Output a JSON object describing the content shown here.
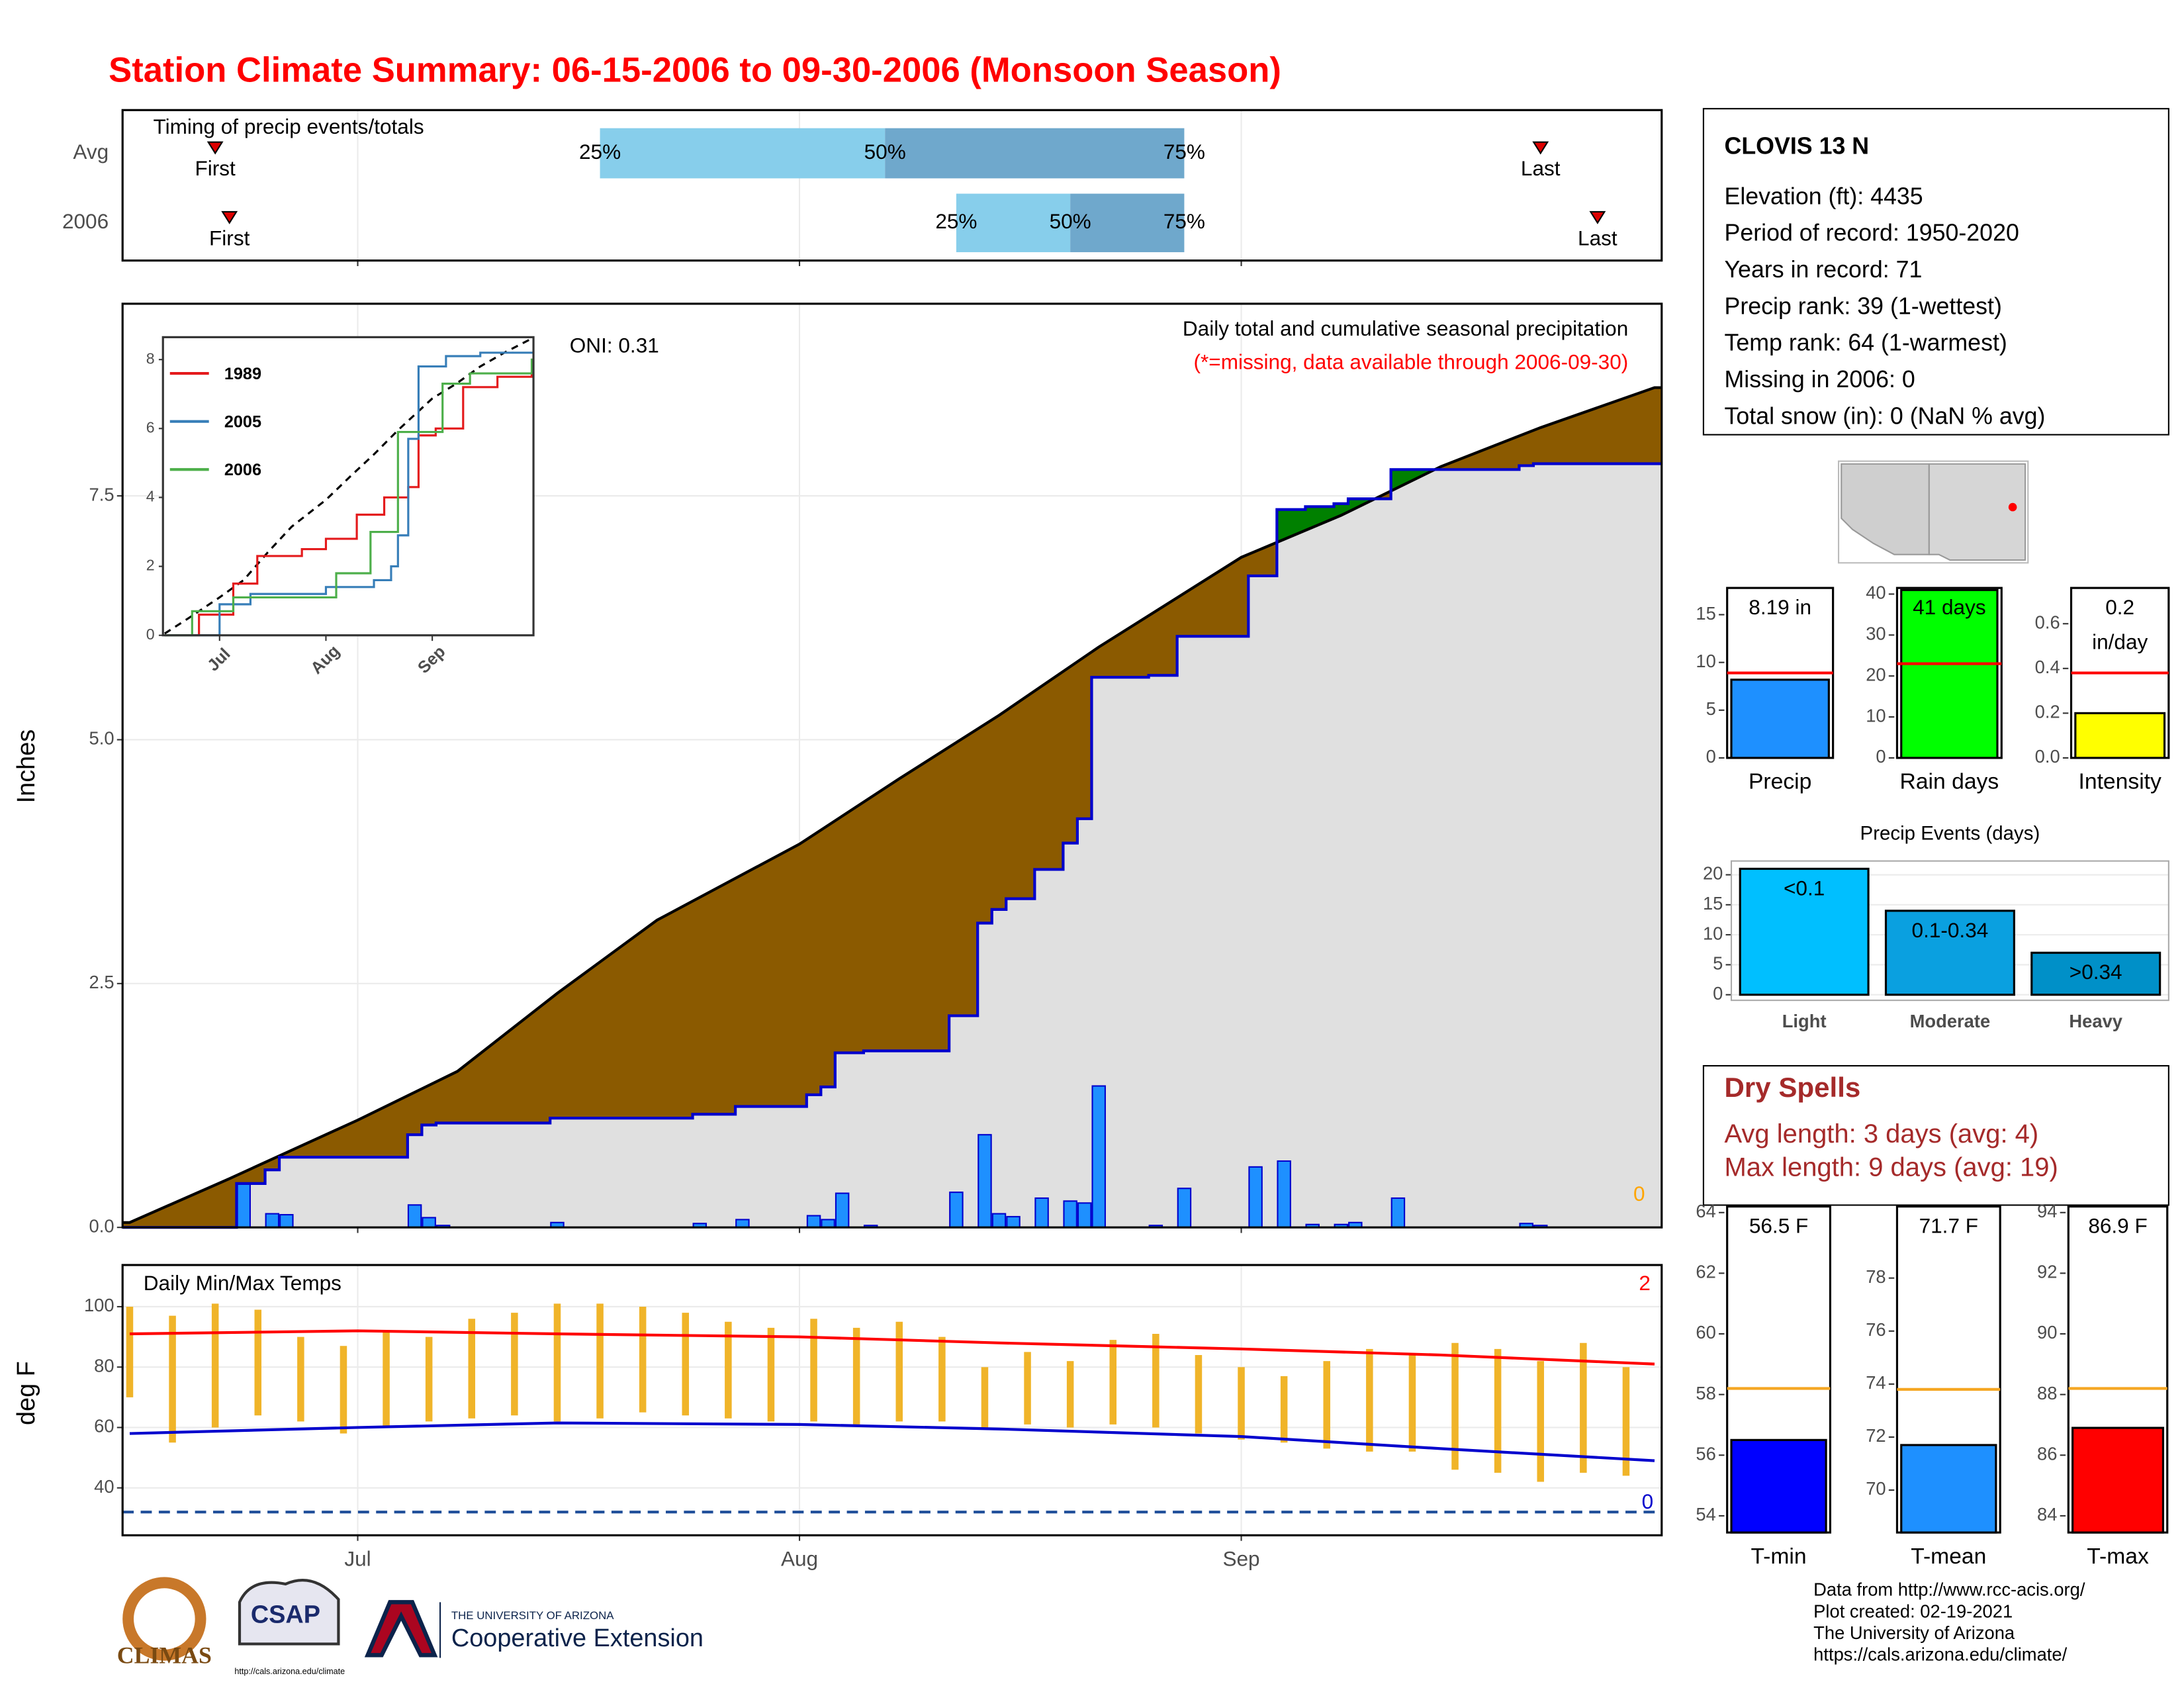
{
  "title": "Station Climate Summary: 06-15-2006 to 09-30-2006 (Monsoon Season)",
  "station": {
    "name": "CLOVIS 13 N",
    "lines": [
      "Elevation (ft): 4435",
      "Period of record: 1950-2020",
      "Years in record: 71",
      "Precip rank: 39 (1-wettest)",
      "Temp rank: 64 (1-warmest)",
      "Missing in 2006: 0",
      "Total snow (in): 0 (NaN % avg)"
    ]
  },
  "dry_spells": {
    "title": "Dry Spells",
    "lines": [
      "Avg length: 3 days (avg: 4)",
      "Max length: 9 days (avg: 19)"
    ]
  },
  "credits": [
    "Data from http://www.rcc-acis.org/",
    "Plot created: 02-19-2021",
    "The University of Arizona",
    "https://cals.arizona.edu/climate/"
  ],
  "logos": {
    "climas": "CLIMAS",
    "csap": "CSAP",
    "csap_url": "http://cals.arizona.edu/climate",
    "university": "THE UNIVERSITY OF ARIZONA",
    "extension": "Cooperative Extension"
  },
  "chart_data": [
    {
      "type": "timeline",
      "title": "Timing of precip events/totals",
      "xlim": [
        "2006-06-15",
        "2006-09-30"
      ],
      "xticks": [
        {
          "value": "2006-07-01",
          "label": "Jul"
        },
        {
          "value": "2006-08-01",
          "label": "Aug"
        },
        {
          "value": "2006-09-01",
          "label": "Sep"
        }
      ],
      "quartile_labels": [
        "25%",
        "50%",
        "75%"
      ],
      "first_label": "First",
      "last_label": "Last",
      "colors": [
        "#87ceeb",
        "#6fa8cc"
      ],
      "marker_color": "#dd0000",
      "rows": [
        {
          "label": "Avg",
          "first": "2006-06-21",
          "last": "2006-09-22",
          "quartiles": [
            "2006-07-18",
            "2006-08-07",
            "2006-08-28"
          ]
        },
        {
          "label": "2006",
          "first": "2006-06-22",
          "last": "2006-09-26",
          "quartiles": [
            "2006-08-12",
            "2006-08-20",
            "2006-08-28"
          ]
        }
      ]
    },
    {
      "type": "cumulative",
      "title": "Daily total and cumulative seasonal precipitation",
      "subtitle": "(*=missing, data available through 2006-09-30)",
      "annotation": "ONI: 0.31",
      "missing_count": 0,
      "ylabel": "Inches",
      "grid": true,
      "xlim": [
        "2006-06-15",
        "2006-09-30"
      ],
      "xticks": [
        {
          "value": "2006-07-01",
          "label": "Jul"
        },
        {
          "value": "2006-08-01",
          "label": "Aug"
        },
        {
          "value": "2006-09-01",
          "label": "Sep"
        }
      ],
      "ylim": [
        0,
        9.47
      ],
      "yticks": [
        {
          "value": 0,
          "label": "0.0"
        },
        2.5,
        {
          "value": 5,
          "label": "5.0"
        },
        7.5
      ],
      "colors": {
        "below": "#8b5a00",
        "above": "#008000",
        "base": "#e0e0e0",
        "observed": "#0000cd",
        "average": "#000000",
        "missing": "#ffa500"
      },
      "daily": {
        "color": "#1e90ff",
        "x": [
          "2006-06-23",
          "2006-06-25",
          "2006-06-26",
          "2006-07-05",
          "2006-07-06",
          "2006-07-07",
          "2006-07-15",
          "2006-07-25",
          "2006-07-28",
          "2006-08-02",
          "2006-08-03",
          "2006-08-04",
          "2006-08-06",
          "2006-08-12",
          "2006-08-14",
          "2006-08-15",
          "2006-08-16",
          "2006-08-18",
          "2006-08-20",
          "2006-08-21",
          "2006-08-22",
          "2006-08-26",
          "2006-08-28",
          "2006-09-02",
          "2006-09-04",
          "2006-09-06",
          "2006-09-08",
          "2006-09-09",
          "2006-09-12",
          "2006-09-21",
          "2006-09-22"
        ],
        "values": [
          0.45,
          0.14,
          0.13,
          0.23,
          0.1,
          0.02,
          0.05,
          0.04,
          0.08,
          0.12,
          0.08,
          0.35,
          0.02,
          0.36,
          0.95,
          0.14,
          0.11,
          0.3,
          0.27,
          0.25,
          1.45,
          0.02,
          0.4,
          0.62,
          0.68,
          0.03,
          0.03,
          0.05,
          0.3,
          0.04,
          0.02
        ]
      },
      "average": {
        "x": [
          "2006-06-15",
          "2006-06-22",
          "2006-07-01",
          "2006-07-08",
          "2006-07-15",
          "2006-07-22",
          "2006-08-01",
          "2006-08-08",
          "2006-08-15",
          "2006-08-22",
          "2006-09-01",
          "2006-09-08",
          "2006-09-15",
          "2006-09-22",
          "2006-09-30"
        ],
        "values": [
          0.05,
          0.5,
          1.1,
          1.6,
          2.4,
          3.15,
          3.93,
          4.6,
          5.25,
          5.95,
          6.87,
          7.3,
          7.8,
          8.2,
          8.61
        ]
      }
    },
    {
      "type": "line",
      "xlim": [
        "2006-06-15",
        "2006-09-30"
      ],
      "ylim": [
        0,
        8.65
      ],
      "yticks": [
        0,
        2,
        4,
        6,
        8
      ],
      "xticks": [
        {
          "value": "2006-07-01",
          "label": "Jul"
        },
        {
          "value": "2006-08-01",
          "label": "Aug"
        },
        {
          "value": "2006-09-01",
          "label": "Sep"
        }
      ],
      "series": [
        {
          "name": "1989",
          "color": "#e41a1c",
          "x": [
            "2006-06-15",
            "2006-06-25",
            "2006-07-05",
            "2006-07-12",
            "2006-07-25",
            "2006-08-01",
            "2006-08-10",
            "2006-08-18",
            "2006-08-25",
            "2006-08-28",
            "2006-09-02",
            "2006-09-10",
            "2006-09-20",
            "2006-09-30"
          ],
          "values": [
            0,
            0.6,
            1.5,
            2.3,
            2.5,
            2.8,
            3.5,
            4.0,
            4.3,
            5.8,
            6.0,
            7.2,
            7.5,
            7.6
          ]
        },
        {
          "name": "2005",
          "color": "#377eb8",
          "x": [
            "2006-06-15",
            "2006-07-01",
            "2006-07-10",
            "2006-08-01",
            "2006-08-15",
            "2006-08-20",
            "2006-08-22",
            "2006-08-25",
            "2006-08-28",
            "2006-09-05",
            "2006-09-15",
            "2006-09-30"
          ],
          "values": [
            0,
            0.9,
            1.2,
            1.4,
            1.6,
            2.0,
            2.9,
            5.7,
            7.8,
            8.1,
            8.2,
            8.2
          ]
        },
        {
          "name": "2006",
          "color": "#4daf4a",
          "x": [
            "2006-06-15",
            "2006-06-23",
            "2006-07-05",
            "2006-08-04",
            "2006-08-14",
            "2006-08-22",
            "2006-09-04",
            "2006-09-12",
            "2006-09-30"
          ],
          "values": [
            0,
            0.7,
            1.1,
            1.8,
            3.0,
            5.9,
            7.3,
            7.6,
            8.0
          ]
        }
      ]
    },
    {
      "type": "range",
      "title": "Daily Min/Max Temps",
      "ylabel": "deg F",
      "color": "#f0b429",
      "grid": true,
      "xlim": [
        "2006-06-15",
        "2006-09-30"
      ],
      "xticks": [
        {
          "value": "2006-07-01",
          "label": "Jul"
        },
        {
          "value": "2006-08-01",
          "label": "Aug"
        },
        {
          "value": "2006-09-01",
          "label": "Sep"
        }
      ],
      "ylim": [
        24.3,
        113.8
      ],
      "yticks": [
        40,
        60,
        80,
        100
      ],
      "freeze": 32,
      "freeze_color": "#1f4e9a",
      "record_high_count": 2,
      "record_low_count": 0,
      "x": [
        "2006-06-15",
        "2006-06-18",
        "2006-06-21",
        "2006-06-24",
        "2006-06-27",
        "2006-06-30",
        "2006-07-03",
        "2006-07-06",
        "2006-07-09",
        "2006-07-12",
        "2006-07-15",
        "2006-07-18",
        "2006-07-21",
        "2006-07-24",
        "2006-07-27",
        "2006-07-30",
        "2006-08-02",
        "2006-08-05",
        "2006-08-08",
        "2006-08-11",
        "2006-08-14",
        "2006-08-17",
        "2006-08-20",
        "2006-08-23",
        "2006-08-26",
        "2006-08-29",
        "2006-09-01",
        "2006-09-04",
        "2006-09-07",
        "2006-09-10",
        "2006-09-13",
        "2006-09-16",
        "2006-09-19",
        "2006-09-22",
        "2006-09-25",
        "2006-09-28"
      ],
      "max": [
        100,
        97,
        101,
        99,
        90,
        87,
        92,
        90,
        96,
        98,
        101,
        101,
        100,
        98,
        95,
        93,
        96,
        93,
        95,
        90,
        80,
        85,
        82,
        89,
        91,
        84,
        80,
        77,
        82,
        86,
        84,
        88,
        86,
        82,
        88,
        80
      ],
      "min": [
        70,
        55,
        60,
        64,
        62,
        58,
        60,
        62,
        63,
        64,
        62,
        63,
        65,
        64,
        63,
        62,
        62,
        61,
        62,
        62,
        60,
        61,
        60,
        61,
        60,
        58,
        56,
        55,
        53,
        52,
        52,
        46,
        45,
        42,
        45,
        44
      ],
      "avg_max": {
        "color": "#ff0000",
        "x": [
          "2006-06-15",
          "2006-07-01",
          "2006-07-15",
          "2006-08-01",
          "2006-08-15",
          "2006-09-01",
          "2006-09-15",
          "2006-09-30"
        ],
        "values": [
          91,
          92,
          91,
          90,
          88,
          86,
          84,
          81
        ]
      },
      "avg_min": {
        "color": "#0000cd",
        "x": [
          "2006-06-15",
          "2006-07-01",
          "2006-07-15",
          "2006-08-01",
          "2006-08-15",
          "2006-09-01",
          "2006-09-15",
          "2006-09-30"
        ],
        "values": [
          58,
          60,
          61.5,
          61,
          59.5,
          57,
          53,
          49
        ]
      }
    },
    {
      "type": "bar",
      "categories": [
        "Precip"
      ],
      "values": [
        8.19
      ],
      "value_labels": [
        "8.19 in"
      ],
      "average": 8.9,
      "average_color": "#ff0000",
      "color": "#1e90ff",
      "ylim": [
        0,
        17.8
      ],
      "yticks": [
        0,
        5,
        10,
        15
      ]
    },
    {
      "type": "bar",
      "categories": [
        "Rain days"
      ],
      "values": [
        41
      ],
      "value_labels": [
        "41 days"
      ],
      "average": 23,
      "average_color": "#ff0000",
      "color": "#00ff00",
      "ylim": [
        0,
        41.5
      ],
      "yticks": [
        0,
        10,
        20,
        30,
        40
      ]
    },
    {
      "type": "bar",
      "categories": [
        "Intensity"
      ],
      "values": [
        0.2
      ],
      "value_labels": [
        "0.2"
      ],
      "unit": "in/day",
      "average": 0.38,
      "average_color": "#ff0000",
      "color": "#ffff00",
      "ylim": [
        0,
        0.76
      ],
      "yticks": [
        {
          "value": 0,
          "label": "0.0"
        },
        0.2,
        0.4,
        0.6
      ]
    },
    {
      "type": "bar",
      "title": "Precip Events (days)",
      "grid": true,
      "categories": [
        "Light",
        "Moderate",
        "Heavy"
      ],
      "values": [
        21,
        14,
        7
      ],
      "value_labels": [
        "<0.1",
        "0.1-0.34",
        ">0.34"
      ],
      "colors": [
        "#00bfff",
        "#0aa0e0",
        "#0090c8"
      ],
      "ylim": [
        0,
        22.3
      ],
      "yticks": [
        0,
        5,
        10,
        15,
        20
      ]
    },
    {
      "type": "bar",
      "categories": [
        "T-min"
      ],
      "values": [
        56.5
      ],
      "value_labels": [
        "56.5 F"
      ],
      "average": 58.2,
      "average_color": "#f5a623",
      "color": "#0000ff",
      "ylim": [
        53.45,
        64.2
      ],
      "yticks": [
        54,
        56,
        58,
        60,
        62,
        64
      ]
    },
    {
      "type": "bar",
      "categories": [
        "T-mean"
      ],
      "values": [
        71.7
      ],
      "value_labels": [
        "71.7 F"
      ],
      "average": 73.8,
      "average_color": "#f5a623",
      "color": "#1e90ff",
      "ylim": [
        68.4,
        80.7
      ],
      "yticks": [
        70,
        72,
        74,
        76,
        78
      ]
    },
    {
      "type": "bar",
      "categories": [
        "T-max"
      ],
      "values": [
        86.9
      ],
      "value_labels": [
        "86.9 F"
      ],
      "average": 88.2,
      "average_color": "#f5a623",
      "color": "#ff0000",
      "ylim": [
        83.45,
        94.2
      ],
      "yticks": [
        84,
        86,
        88,
        90,
        92,
        94
      ]
    }
  ]
}
